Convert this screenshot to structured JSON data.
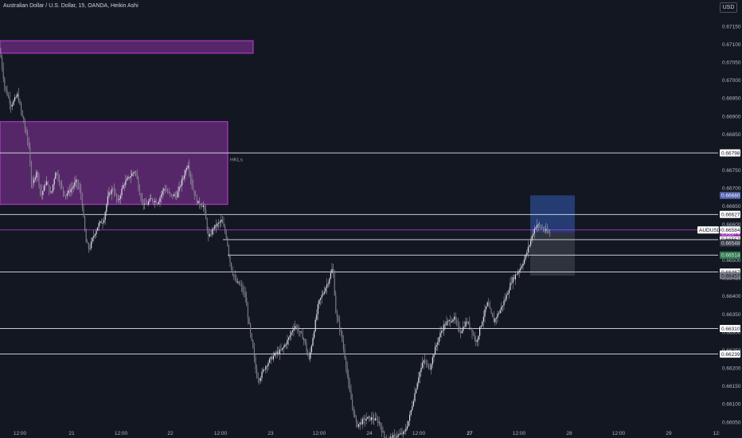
{
  "header": {
    "title": "Australian Dollar / U.S. Dollar, 15, OANDA, Heikin Ashi",
    "currency_button": "USD"
  },
  "colors": {
    "background": "#131722",
    "candle": "#d1d4dc",
    "supply_zone_fill": "#7b2f8f",
    "supply_zone_border": "#c13edb",
    "position_target": "#2b4a8e",
    "position_stop": "#3a3d47",
    "hline": "#e0e3eb",
    "axis_text": "#b2b5be"
  },
  "chart_data": {
    "type": "candlestick",
    "symbol": "AUDUSD",
    "style": "Heikin Ashi",
    "ylim": [
      0.66025,
      0.67175
    ],
    "y_ticks": [
      "0.67150",
      "0.67100",
      "0.67050",
      "0.67000",
      "0.66950",
      "0.66900",
      "0.66850",
      "0.66800",
      "0.66750",
      "0.66700",
      "0.66650",
      "0.66600",
      "0.66550",
      "0.66500",
      "0.66450",
      "0.66400",
      "0.66350",
      "0.66300",
      "0.66250",
      "0.66200",
      "0.66150",
      "0.66100",
      "0.66050"
    ],
    "x_ticks": [
      "12:00",
      "21",
      "12:00",
      "22",
      "12:00",
      "23",
      "12:00",
      "24",
      "12:00",
      "27",
      "12:00",
      "28",
      "12:00",
      "29",
      "12:"
    ],
    "price_path": [
      [
        0,
        0.6708
      ],
      [
        6,
        0.6698
      ],
      [
        14,
        0.6693
      ],
      [
        22,
        0.6696
      ],
      [
        30,
        0.6688
      ],
      [
        36,
        0.6682
      ],
      [
        40,
        0.667
      ],
      [
        46,
        0.6675
      ],
      [
        52,
        0.6668
      ],
      [
        58,
        0.6672
      ],
      [
        64,
        0.6668
      ],
      [
        70,
        0.6675
      ],
      [
        76,
        0.6671
      ],
      [
        82,
        0.6668
      ],
      [
        90,
        0.667
      ],
      [
        96,
        0.6672
      ],
      [
        102,
        0.6668
      ],
      [
        108,
        0.6655
      ],
      [
        112,
        0.6653
      ],
      [
        118,
        0.6657
      ],
      [
        124,
        0.666
      ],
      [
        130,
        0.6661
      ],
      [
        136,
        0.6668
      ],
      [
        142,
        0.667
      ],
      [
        148,
        0.6666
      ],
      [
        155,
        0.6671
      ],
      [
        162,
        0.6673
      ],
      [
        170,
        0.6675
      ],
      [
        176,
        0.6668
      ],
      [
        182,
        0.6665
      ],
      [
        190,
        0.6667
      ],
      [
        198,
        0.6666
      ],
      [
        206,
        0.667
      ],
      [
        214,
        0.6668
      ],
      [
        222,
        0.6668
      ],
      [
        230,
        0.6673
      ],
      [
        236,
        0.6677
      ],
      [
        242,
        0.667
      ],
      [
        248,
        0.6666
      ],
      [
        256,
        0.6665
      ],
      [
        262,
        0.6656
      ],
      [
        268,
        0.6659
      ],
      [
        274,
        0.666
      ],
      [
        278,
        0.6661
      ],
      [
        284,
        0.6657
      ],
      [
        290,
        0.6648
      ],
      [
        296,
        0.6644
      ],
      [
        302,
        0.6643
      ],
      [
        308,
        0.664
      ],
      [
        314,
        0.663
      ],
      [
        318,
        0.6625
      ],
      [
        322,
        0.6618
      ],
      [
        326,
        0.6617
      ],
      [
        332,
        0.662
      ],
      [
        338,
        0.6622
      ],
      [
        346,
        0.6624
      ],
      [
        354,
        0.6625
      ],
      [
        362,
        0.6628
      ],
      [
        370,
        0.6632
      ],
      [
        376,
        0.663
      ],
      [
        382,
        0.6628
      ],
      [
        388,
        0.6622
      ],
      [
        394,
        0.663
      ],
      [
        400,
        0.6638
      ],
      [
        406,
        0.6641
      ],
      [
        412,
        0.6644
      ],
      [
        418,
        0.6648
      ],
      [
        422,
        0.6635
      ],
      [
        428,
        0.663
      ],
      [
        434,
        0.6622
      ],
      [
        438,
        0.6615
      ],
      [
        442,
        0.661
      ],
      [
        448,
        0.6604
      ],
      [
        454,
        0.6605
      ],
      [
        460,
        0.6606
      ],
      [
        468,
        0.6606
      ],
      [
        476,
        0.6605
      ],
      [
        484,
        0.66
      ],
      [
        496,
        0.6601
      ],
      [
        508,
        0.6602
      ],
      [
        514,
        0.6606
      ],
      [
        520,
        0.6612
      ],
      [
        526,
        0.6618
      ],
      [
        532,
        0.6622
      ],
      [
        540,
        0.662
      ],
      [
        546,
        0.6625
      ],
      [
        552,
        0.6629
      ],
      [
        558,
        0.6632
      ],
      [
        564,
        0.6633
      ],
      [
        570,
        0.6634
      ],
      [
        578,
        0.663
      ],
      [
        586,
        0.6633
      ],
      [
        592,
        0.6631
      ],
      [
        598,
        0.6627
      ],
      [
        604,
        0.6632
      ],
      [
        612,
        0.6638
      ],
      [
        620,
        0.6633
      ],
      [
        628,
        0.6636
      ],
      [
        636,
        0.664
      ],
      [
        642,
        0.6644
      ],
      [
        648,
        0.6646
      ],
      [
        654,
        0.6648
      ],
      [
        660,
        0.6651
      ],
      [
        666,
        0.6655
      ],
      [
        670,
        0.6658
      ],
      [
        674,
        0.666
      ],
      [
        680,
        0.6659
      ],
      [
        686,
        0.6658
      ],
      [
        692,
        0.6657
      ]
    ],
    "supply_zones": [
      {
        "top": 0.6711,
        "bottom": 0.67075,
        "x_start": 0,
        "x_end": 318
      },
      {
        "top": 0.66885,
        "bottom": 0.66655,
        "x_start": 0,
        "x_end": 286,
        "label": "HKLs"
      }
    ],
    "horizontal_lines": [
      {
        "price": 0.66798,
        "x_start": 0,
        "label": "0.66798"
      },
      {
        "price": 0.66627,
        "x_start": 0,
        "label": "0.66627"
      },
      {
        "price": 0.66467,
        "x_start": 0,
        "label": "0.66467"
      },
      {
        "price": 0.6631,
        "x_start": 0,
        "label": "0.66310"
      },
      {
        "price": 0.66239,
        "x_start": 0,
        "label": "0.66239"
      },
      {
        "price": 0.66557,
        "x_start": 280,
        "label": "0.66557"
      },
      {
        "price": 0.66514,
        "x_start": 286,
        "label": ""
      }
    ],
    "position": {
      "x_start": 666,
      "x_end": 722,
      "target": 0.6668,
      "entry": 0.66576,
      "stop": 0.66457,
      "target_label": "0.66680",
      "entry_label": "0.66576",
      "stop_label": "0.66457"
    },
    "current_price": {
      "price": 0.66584,
      "symbol_label": "AUDUSD",
      "value_label": "0.66584",
      "countdown": "09:53"
    },
    "extra_labels": [
      {
        "price": 0.66548,
        "text": "0.66548",
        "bg": "#3a3d47"
      },
      {
        "price": 0.66514,
        "text": "0.66514",
        "bg": "#2e7d4f"
      }
    ]
  }
}
